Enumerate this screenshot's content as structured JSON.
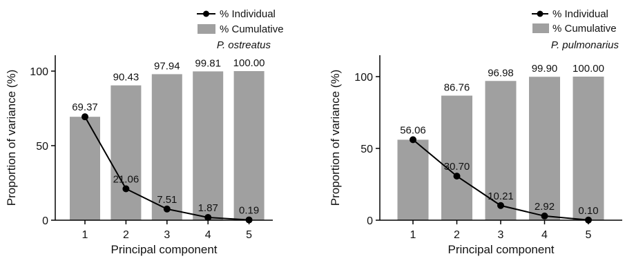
{
  "chart_data": [
    {
      "type": "bar",
      "subtitle": "P. ostreatus",
      "xlabel": "Principal component",
      "ylabel": "Proportion of variance (%)",
      "categories": [
        "1",
        "2",
        "3",
        "4",
        "5"
      ],
      "ylim": [
        0,
        110
      ],
      "yticks": [
        0,
        50,
        100
      ],
      "legend_placement": "top-right",
      "grid": false,
      "series": [
        {
          "name": "% Cumulative",
          "kind": "bar",
          "color": "#a0a0a0",
          "values": [
            69.37,
            90.43,
            97.94,
            99.81,
            100.0
          ],
          "labels": [
            "69.37",
            "90.43",
            "97.94",
            "99.81",
            "100.00"
          ]
        },
        {
          "name": "% Individual",
          "kind": "line",
          "color": "#000000",
          "values": [
            69.37,
            21.06,
            7.51,
            1.87,
            0.19
          ],
          "labels": [
            "69.37",
            "21.06",
            "7.51",
            "1.87",
            "0.19"
          ]
        }
      ]
    },
    {
      "type": "bar",
      "subtitle": "P. pulmonarius",
      "xlabel": "Principal component",
      "ylabel": "Proportion of variance (%)",
      "categories": [
        "1",
        "2",
        "3",
        "4",
        "5"
      ],
      "ylim": [
        0,
        110
      ],
      "yticks": [
        0,
        50,
        100
      ],
      "legend_placement": "top-right",
      "grid": false,
      "series": [
        {
          "name": "% Cumulative",
          "kind": "bar",
          "color": "#a0a0a0",
          "values": [
            56.06,
            86.76,
            96.98,
            99.9,
            100.0
          ],
          "labels": [
            "56.06",
            "86.76",
            "96.98",
            "99.90",
            "100.00"
          ]
        },
        {
          "name": "% Individual",
          "kind": "line",
          "color": "#000000",
          "values": [
            56.06,
            30.7,
            10.21,
            2.92,
            0.1
          ],
          "labels": [
            "56.06",
            "30.70",
            "10.21",
            "2.92",
            "0.10"
          ]
        }
      ]
    }
  ]
}
